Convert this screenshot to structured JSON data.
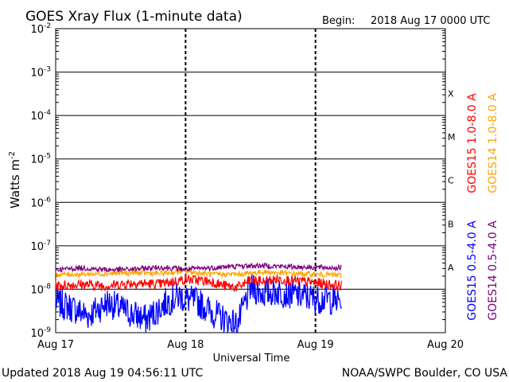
{
  "chart_data": {
    "type": "line",
    "title": "GOES Xray Flux (1-minute data)",
    "begin_label": "Begin:",
    "begin_value": "2018 Aug 17 0000 UTC",
    "xlabel": "Universal Time",
    "ylabel_base": "Watts m",
    "ylabel_exp": "-2",
    "x_ticks": [
      "Aug 17",
      "Aug 18",
      "Aug 19",
      "Aug 20"
    ],
    "x_range_days": [
      0,
      3
    ],
    "y_scale": "log",
    "ylim": [
      1e-09,
      0.01
    ],
    "y_ticks": [
      {
        "value": 0.01,
        "base": "10",
        "exp": "-2"
      },
      {
        "value": 0.001,
        "base": "10",
        "exp": "-3"
      },
      {
        "value": 0.0001,
        "base": "10",
        "exp": "-4"
      },
      {
        "value": 1e-05,
        "base": "10",
        "exp": "-5"
      },
      {
        "value": 1e-06,
        "base": "10",
        "exp": "-6"
      },
      {
        "value": 1e-07,
        "base": "10",
        "exp": "-7"
      },
      {
        "value": 1e-08,
        "base": "10",
        "exp": "-8"
      },
      {
        "value": 1e-09,
        "base": "10",
        "exp": "-9"
      }
    ],
    "flare_classes": [
      {
        "label": "X",
        "value": 0.00032
      },
      {
        "label": "M",
        "value": 3.2e-05
      },
      {
        "label": "C",
        "value": 3.2e-06
      },
      {
        "label": "B",
        "value": 3.2e-07
      },
      {
        "label": "A",
        "value": 3.2e-08
      }
    ],
    "series": [
      {
        "name": "GOES15 0.5-4.0 A",
        "color": "#0000ff",
        "x": [
          0,
          0.1,
          0.25,
          0.4,
          0.55,
          0.7,
          0.85,
          0.95,
          1.0,
          1.1,
          1.2,
          1.3,
          1.4,
          1.5,
          1.6,
          1.7,
          1.8,
          1.9,
          2.0,
          2.1,
          2.2
        ],
        "values": [
          5e-09,
          4e-09,
          2.5e-09,
          5e-09,
          3e-09,
          2e-09,
          5e-09,
          7e-09,
          6e-09,
          5e-09,
          3e-09,
          2e-09,
          1.5e-09,
          1.1e-08,
          8e-09,
          9e-09,
          8e-09,
          7e-09,
          6e-09,
          6e-09,
          5e-09
        ]
      },
      {
        "name": "GOES15 1.0-8.0 A",
        "color": "#ff0000",
        "x": [
          0,
          0.2,
          0.4,
          0.6,
          0.8,
          1.0,
          1.1,
          1.2,
          1.3,
          1.4,
          1.5,
          1.6,
          1.7,
          1.8,
          1.9,
          2.0,
          2.1,
          2.2
        ],
        "values": [
          1.2e-08,
          1.3e-08,
          1.2e-08,
          1.4e-08,
          1.3e-08,
          1.7e-08,
          1.6e-08,
          1.5e-08,
          1.2e-08,
          1.1e-08,
          1.6e-08,
          1.5e-08,
          1.7e-08,
          1.6e-08,
          1.5e-08,
          1.4e-08,
          1.3e-08,
          1.2e-08
        ]
      },
      {
        "name": "GOES14 1.0-8.0 A",
        "color": "#ffa500",
        "x": [
          0,
          0.2,
          0.4,
          0.6,
          0.8,
          1.0,
          1.2,
          1.4,
          1.6,
          1.8,
          2.0,
          2.2
        ],
        "values": [
          2.2e-08,
          2.2e-08,
          2.3e-08,
          2.4e-08,
          2.3e-08,
          2.6e-08,
          2.2e-08,
          2.2e-08,
          2.5e-08,
          2.3e-08,
          2.2e-08,
          2.1e-08
        ]
      },
      {
        "name": "GOES14 0.5-4.0 A",
        "color": "#800080",
        "x": [
          0,
          0.2,
          0.4,
          0.6,
          0.8,
          1.0,
          1.2,
          1.4,
          1.6,
          1.8,
          2.0,
          2.2
        ],
        "values": [
          2.8e-08,
          3.1e-08,
          2.8e-08,
          2.9e-08,
          3.2e-08,
          2.9e-08,
          3.1e-08,
          3.4e-08,
          3.5e-08,
          3.3e-08,
          3.2e-08,
          3.1e-08
        ]
      }
    ]
  },
  "footer": {
    "updated": "Updated 2018 Aug 19 04:56:11 UTC",
    "credit": "NOAA/SWPC Boulder, CO USA"
  }
}
